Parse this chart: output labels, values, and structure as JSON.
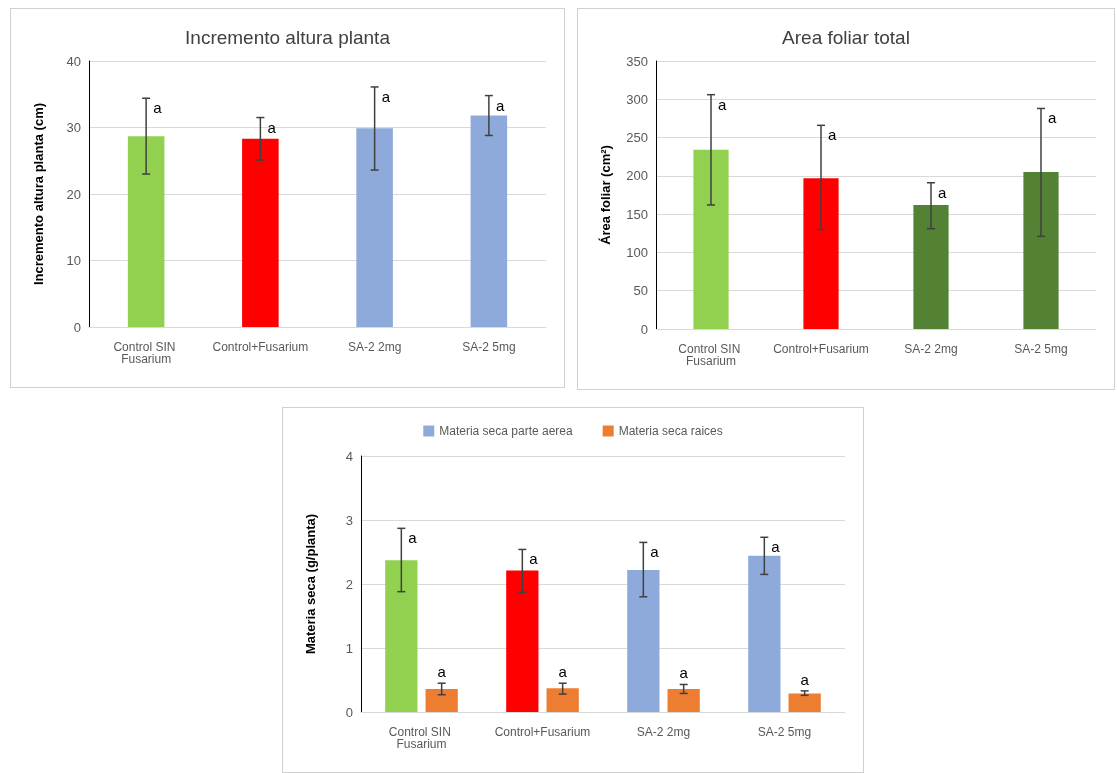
{
  "chart_data": [
    {
      "type": "bar",
      "title": "Incremento altura planta",
      "ylabel": "Incremento altura planta (cm)",
      "categories": [
        "Control SIN Fusarium",
        "Control+Fusarium",
        "SA-2 2mg",
        "SA-2 5mg"
      ],
      "values": [
        28.7,
        28.3,
        29.9,
        31.8
      ],
      "colors": [
        "#92d050",
        "#ff0000",
        "#8eaadb",
        "#8eaadb"
      ],
      "errors": [
        [
          23.0,
          34.4
        ],
        [
          25.1,
          31.5
        ],
        [
          23.6,
          36.1
        ],
        [
          28.8,
          34.8
        ]
      ],
      "ylim": [
        0,
        40
      ],
      "yticks": [
        0,
        10,
        20,
        30,
        40
      ],
      "grid": "y",
      "annotations": [
        {
          "text": "a",
          "x": "Control SIN Fusarium",
          "y": 34.4
        },
        {
          "text": "a",
          "x": "Control+Fusarium",
          "y": 31.5
        },
        {
          "text": "a",
          "x": "SA-2 2mg",
          "y": 36.1
        },
        {
          "text": "a",
          "x": "SA-2 5mg",
          "y": 34.8
        }
      ]
    },
    {
      "type": "bar",
      "title": "Area foliar total",
      "ylabel": "Área foliar (cm²)",
      "categories": [
        "Control SIN Fusarium",
        "Control+Fusarium",
        "SA-2 2mg",
        "SA-2 5mg"
      ],
      "values": [
        234,
        197,
        162,
        205
      ],
      "colors": [
        "#92d050",
        "#ff0000",
        "#548235",
        "#548235"
      ],
      "errors": [
        [
          162,
          306
        ],
        [
          130,
          266
        ],
        [
          131,
          191
        ],
        [
          121,
          288
        ]
      ],
      "ylim": [
        0,
        350
      ],
      "yticks": [
        0,
        50,
        100,
        150,
        200,
        250,
        300,
        350
      ],
      "grid": "y",
      "annotations": [
        {
          "text": "a",
          "x": "Control SIN Fusarium",
          "y": 306
        },
        {
          "text": "a",
          "x": "Control+Fusarium",
          "y": 266
        },
        {
          "text": "a",
          "x": "SA-2 2mg",
          "y": 191
        },
        {
          "text": "a",
          "x": "SA-2 5mg",
          "y": 288
        }
      ]
    },
    {
      "type": "bar",
      "ylabel": "Materia seca (g/planta)",
      "categories": [
        "Control SIN Fusarium",
        "Control+Fusarium",
        "SA-2 2mg",
        "SA-2 5mg"
      ],
      "series": [
        {
          "name": "Materia seca parte aerea",
          "color": "#8eaadb",
          "colors": [
            "#92d050",
            "#ff0000",
            "#8eaadb",
            "#8eaadb"
          ],
          "values": [
            2.37,
            2.21,
            2.22,
            2.44
          ],
          "value_labels": [
            "a",
            "a",
            "a",
            "a"
          ],
          "errors": [
            [
              1.88,
              2.87
            ],
            [
              1.87,
              2.54
            ],
            [
              1.8,
              2.65
            ],
            [
              2.15,
              2.73
            ]
          ]
        },
        {
          "name": "Materia seca raices",
          "color": "#ed7d31",
          "values": [
            0.36,
            0.37,
            0.36,
            0.29
          ],
          "value_labels": [
            "a",
            "a",
            "a",
            "a"
          ],
          "errors": [
            [
              0.27,
              0.45
            ],
            [
              0.28,
              0.45
            ],
            [
              0.29,
              0.43
            ],
            [
              0.26,
              0.33
            ]
          ]
        }
      ],
      "ylim": [
        0,
        4
      ],
      "yticks": [
        0,
        1,
        2,
        3,
        4
      ],
      "grid": "y",
      "legend": "top"
    }
  ]
}
